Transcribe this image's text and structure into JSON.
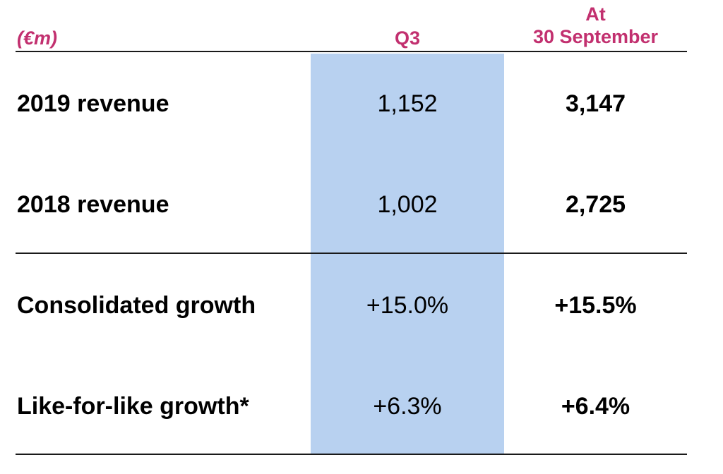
{
  "header": {
    "unit": "(€m)",
    "q3": "Q3",
    "ytd_line1": "At",
    "ytd_line2": "30 September"
  },
  "rows": [
    {
      "label": "2019 revenue",
      "q3": "1,152",
      "ytd": "3,147"
    },
    {
      "label": "2018 revenue",
      "q3": "1,002",
      "ytd": "2,725"
    },
    {
      "label": "Consolidated growth",
      "q3": "+15.0%",
      "ytd": "+15.5%"
    },
    {
      "label": "Like-for-like growth*",
      "q3": "+6.3%",
      "ytd": "+6.4%"
    }
  ],
  "colors": {
    "header_text": "#c2306f",
    "q3_highlight": "#b8d1f0",
    "rule": "#1a1a1a"
  }
}
